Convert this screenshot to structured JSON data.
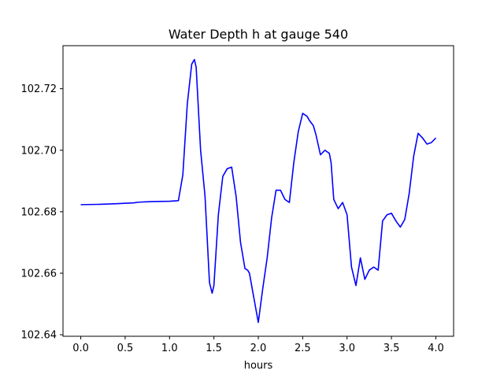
{
  "chart_data": {
    "type": "line",
    "title": "Water Depth h at gauge 540",
    "xlabel": "hours",
    "ylabel": "",
    "xlim": [
      -0.2,
      4.2
    ],
    "ylim": [
      102.6395,
      102.734
    ],
    "xticks": [
      0.0,
      0.5,
      1.0,
      1.5,
      2.0,
      2.5,
      3.0,
      3.5,
      4.0
    ],
    "xtick_labels": [
      "0.0",
      "0.5",
      "1.0",
      "1.5",
      "2.0",
      "2.5",
      "3.0",
      "3.5",
      "4.0"
    ],
    "yticks": [
      102.64,
      102.66,
      102.68,
      102.7,
      102.72
    ],
    "ytick_labels": [
      "102.64",
      "102.66",
      "102.68",
      "102.70",
      "102.72"
    ],
    "grid": false,
    "series": [
      {
        "color": "#0000ff",
        "x": [
          0.0,
          0.2,
          0.4,
          0.6,
          0.65,
          0.8,
          1.0,
          1.1,
          1.15,
          1.2,
          1.25,
          1.28,
          1.3,
          1.35,
          1.4,
          1.45,
          1.48,
          1.5,
          1.55,
          1.6,
          1.65,
          1.7,
          1.75,
          1.8,
          1.85,
          1.88,
          1.9,
          1.95,
          2.0,
          2.05,
          2.1,
          2.15,
          2.2,
          2.25,
          2.3,
          2.35,
          2.4,
          2.45,
          2.5,
          2.55,
          2.58,
          2.62,
          2.65,
          2.7,
          2.75,
          2.8,
          2.82,
          2.85,
          2.9,
          2.95,
          3.0,
          3.05,
          3.1,
          3.15,
          3.2,
          3.25,
          3.3,
          3.35,
          3.4,
          3.45,
          3.5,
          3.55,
          3.6,
          3.65,
          3.7,
          3.75,
          3.8,
          3.85,
          3.9,
          3.95,
          4.0
        ],
        "y": [
          102.6823,
          102.6824,
          102.6826,
          102.6829,
          102.6831,
          102.6833,
          102.6834,
          102.6836,
          102.692,
          102.715,
          102.728,
          102.7295,
          102.727,
          102.7,
          102.685,
          102.657,
          102.6535,
          102.656,
          102.679,
          102.6915,
          102.694,
          102.6945,
          102.685,
          102.67,
          102.6615,
          102.661,
          102.66,
          102.652,
          102.644,
          102.655,
          102.665,
          102.678,
          102.687,
          102.687,
          102.684,
          102.683,
          102.696,
          102.706,
          102.712,
          102.711,
          102.7095,
          102.708,
          102.705,
          102.6985,
          102.7,
          102.699,
          102.696,
          102.684,
          102.681,
          102.683,
          102.679,
          102.662,
          102.656,
          102.665,
          102.658,
          102.661,
          102.662,
          102.661,
          102.677,
          102.679,
          102.6795,
          102.677,
          102.675,
          102.6775,
          102.686,
          102.698,
          102.7055,
          102.704,
          102.702,
          102.7025,
          102.704
        ]
      }
    ]
  }
}
